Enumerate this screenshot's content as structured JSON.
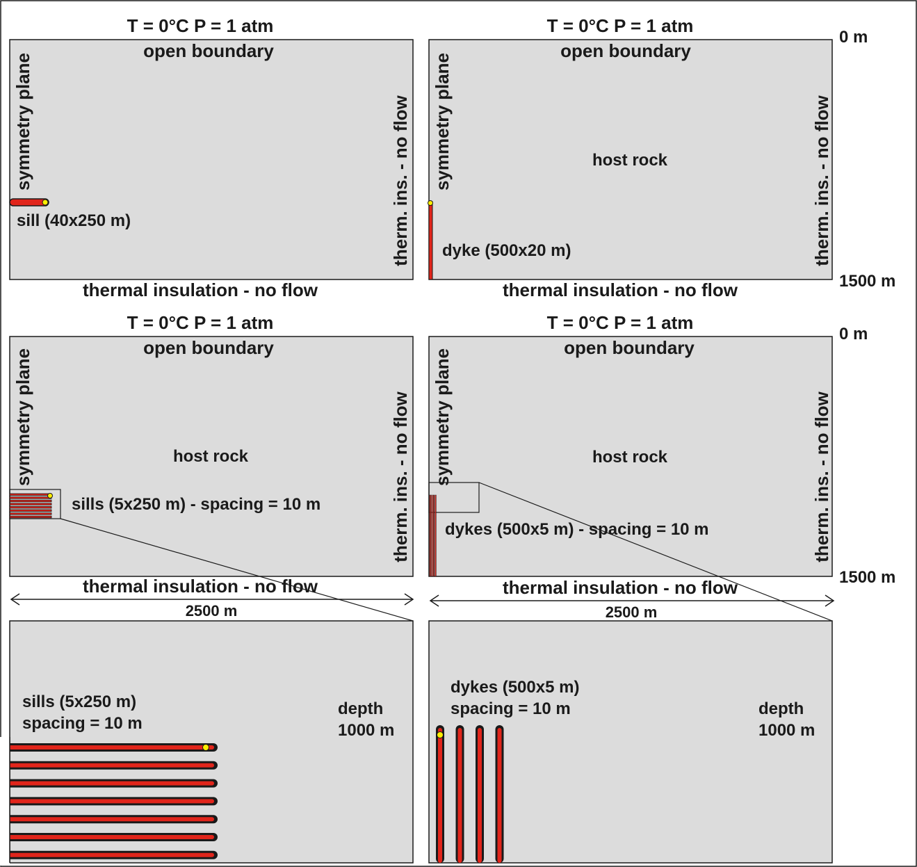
{
  "colors": {
    "panel_fill": "#dcdcdc",
    "intrusion_fill": "#e1251b",
    "intrusion_outline": "#1a1a1a",
    "point_marker": "#ffee00",
    "frame": "#1a1a1a"
  },
  "panels": {
    "sill": {
      "top_label": "T = 0°C  P = 1 atm",
      "top_boundary": "open boundary",
      "left_boundary": "symmetry plane",
      "right_boundary": "",
      "bottom_boundary": "thermal insulation - no flow",
      "intrusion_label": "sill (40x250 m)"
    },
    "dyke": {
      "top_label": "T = 0°C  P = 1 atm",
      "top_boundary": "open boundary",
      "left_boundary": "symmetry plane",
      "right_boundary": "therm. ins. - no flow",
      "bottom_boundary": "thermal insulation - no flow",
      "host_label": "host rock",
      "intrusion_label": "dyke (500x20 m)"
    },
    "sills": {
      "top_label": "T = 0°C  P = 1 atm",
      "top_boundary": "open boundary",
      "left_boundary": "symmetry plane",
      "right_boundary": "therm. ins. - no flow",
      "bottom_boundary": "thermal insulation - no flow",
      "host_label": "host rock",
      "intrusion_label": "sills (5x250 m) - spacing = 10 m",
      "width_label": "2500 m"
    },
    "dykes": {
      "top_label": "T = 0°C  P = 1 atm",
      "top_boundary": "open boundary",
      "left_boundary": "symmetry plane",
      "right_boundary": "therm. ins. - no flow",
      "bottom_boundary": "thermal insulation - no flow",
      "host_label": "host rock",
      "intrusion_label": "dykes (500x5 m) - spacing = 10 m",
      "width_label": "2500 m"
    },
    "sill_right_boundary": "therm. ins. - no flow"
  },
  "depth_scale": {
    "top_1": "0 m",
    "bottom_1": "1500 m",
    "top_2": "0 m",
    "bottom_2": "1500 m"
  },
  "zoom_sills": {
    "label_line1": "sills (5x250 m)",
    "label_line2": "spacing = 10 m",
    "depth_line1": "depth",
    "depth_line2": "1000 m",
    "sill_count": 8
  },
  "zoom_dykes": {
    "label_line1": "dykes (500x5 m)",
    "label_line2": "spacing = 10 m",
    "depth_line1": "depth",
    "depth_line2": "1000 m",
    "dyke_count": 4
  }
}
